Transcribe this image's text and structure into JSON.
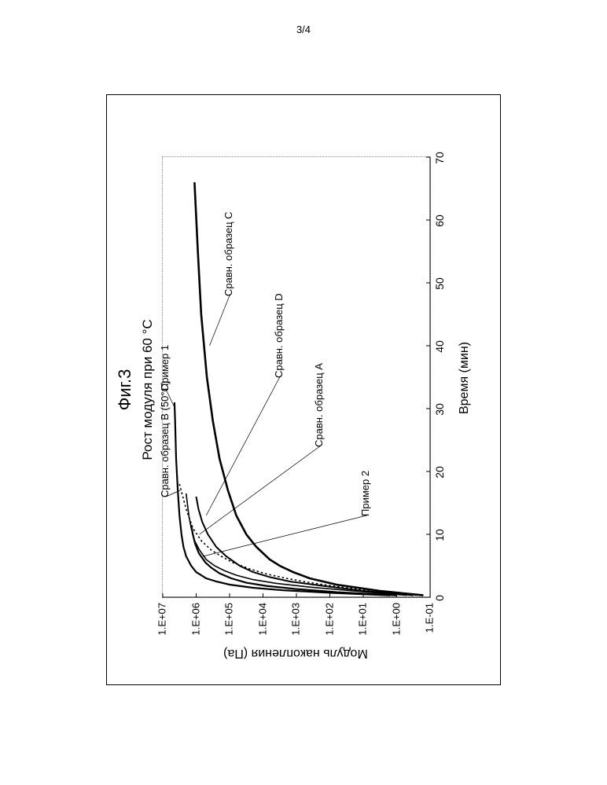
{
  "page_number": "3/4",
  "figure_label": "Фиг.3",
  "chart": {
    "type": "line",
    "title": "Рост модуля при 60 °C",
    "xlabel": "Время (мин)",
    "ylabel": "Модуль накопления (Па)",
    "xlim": [
      0,
      70
    ],
    "xtick_step": 10,
    "ylim_exp": [
      -1,
      7
    ],
    "yticks": [
      "1.E-01",
      "1.E+00",
      "1.E+01",
      "1.E+02",
      "1.E+03",
      "1.E+04",
      "1.E+05",
      "1.E+06",
      "1.E+07"
    ],
    "background_color": "#ffffff",
    "border_style": "dotted",
    "border_color": "#888888",
    "axis_font_size": 14,
    "label_font_size": 16,
    "title_font_size": 17,
    "series": [
      {
        "name": "Сравн. образец C",
        "stroke": "#000000",
        "width": 2.6,
        "dash": "",
        "data": [
          [
            0.3,
            -0.8
          ],
          [
            1,
            0.5
          ],
          [
            2,
            1.8
          ],
          [
            3,
            2.6
          ],
          [
            4,
            3.1
          ],
          [
            5,
            3.5
          ],
          [
            6,
            3.8
          ],
          [
            8,
            4.2
          ],
          [
            10,
            4.5
          ],
          [
            13,
            4.8
          ],
          [
            17,
            5.05
          ],
          [
            22,
            5.3
          ],
          [
            28,
            5.5
          ],
          [
            35,
            5.68
          ],
          [
            45,
            5.85
          ],
          [
            55,
            5.95
          ],
          [
            66,
            6.05
          ]
        ],
        "label_xy": [
          48,
          5.0
        ],
        "leader_to": [
          40,
          5.6
        ]
      },
      {
        "name": "Сравн. образец D",
        "stroke": "#000000",
        "width": 2.0,
        "dash": "",
        "data": [
          [
            0.3,
            -0.5
          ],
          [
            1,
            1.0
          ],
          [
            1.8,
            2.2
          ],
          [
            2.5,
            3.2
          ],
          [
            3.2,
            3.8
          ],
          [
            4,
            4.3
          ],
          [
            5,
            4.7
          ],
          [
            6.5,
            5.1
          ],
          [
            8,
            5.4
          ],
          [
            10,
            5.65
          ],
          [
            12,
            5.82
          ],
          [
            14,
            5.93
          ],
          [
            16,
            6.0
          ]
        ],
        "label_xy": [
          35,
          3.5
        ],
        "leader_to": [
          13,
          5.7
        ]
      },
      {
        "name": "Сравн. образец A",
        "stroke": "#000000",
        "width": 1.6,
        "dash": "",
        "data": [
          [
            0.3,
            -0.3
          ],
          [
            1,
            1.3
          ],
          [
            1.6,
            2.6
          ],
          [
            2.2,
            3.6
          ],
          [
            2.8,
            4.3
          ],
          [
            3.5,
            4.8
          ],
          [
            4.2,
            5.15
          ],
          [
            5,
            5.45
          ],
          [
            6,
            5.7
          ],
          [
            7.5,
            5.9
          ],
          [
            9,
            6.05
          ],
          [
            11,
            6.15
          ],
          [
            13,
            6.22
          ],
          [
            16.5,
            6.3
          ]
        ],
        "label_xy": [
          24,
          2.3
        ],
        "leader_to": [
          10,
          5.9
        ]
      },
      {
        "name": "Пример 2",
        "stroke": "#000000",
        "width": 2.2,
        "dash": "",
        "data": [
          [
            0.3,
            0.0
          ],
          [
            0.8,
            1.8
          ],
          [
            1.3,
            3.0
          ],
          [
            1.8,
            3.9
          ],
          [
            2.3,
            4.5
          ],
          [
            3,
            4.95
          ],
          [
            3.8,
            5.3
          ],
          [
            4.7,
            5.55
          ],
          [
            5.5,
            5.72
          ],
          [
            7,
            5.92
          ],
          [
            8.5,
            6.03
          ],
          [
            10,
            6.1
          ],
          [
            11.5,
            6.15
          ]
        ],
        "label_xy": [
          13,
          0.9
        ],
        "leader_to": [
          6.5,
          5.8
        ]
      },
      {
        "name": "Пример 1",
        "stroke": "#000000",
        "width": 2.2,
        "dash": "",
        "data": [
          [
            0.3,
            0.2
          ],
          [
            0.7,
            2.0
          ],
          [
            1.1,
            3.4
          ],
          [
            1.5,
            4.3
          ],
          [
            2,
            5.0
          ],
          [
            2.5,
            5.4
          ],
          [
            3,
            5.7
          ],
          [
            4,
            6.0
          ],
          [
            5,
            6.15
          ],
          [
            6.5,
            6.3
          ],
          [
            8,
            6.38
          ],
          [
            10,
            6.44
          ],
          [
            13,
            6.5
          ],
          [
            17,
            6.55
          ],
          [
            22,
            6.6
          ],
          [
            28,
            6.63
          ],
          [
            31,
            6.65
          ]
        ],
        "label_xy": [
          33,
          6.9
        ],
        "leader_to": [
          30,
          6.63
        ]
      },
      {
        "name": "Сравн. образец B (50°C)",
        "stroke": "#000000",
        "width": 1.6,
        "dash": "2.5 3",
        "data": [
          [
            0.3,
            -0.6
          ],
          [
            1,
            0.7
          ],
          [
            1.5,
            1.5
          ],
          [
            2,
            2.2
          ],
          [
            2.5,
            2.8
          ],
          [
            3,
            3.3
          ],
          [
            3.7,
            3.9
          ],
          [
            4.5,
            4.4
          ],
          [
            5.5,
            4.9
          ],
          [
            6.5,
            5.25
          ],
          [
            7.5,
            5.55
          ],
          [
            9,
            5.85
          ],
          [
            11,
            6.1
          ],
          [
            14,
            6.3
          ],
          [
            18,
            6.5
          ]
        ],
        "label_xy": [
          16,
          6.9
        ],
        "leader_to": [
          17,
          6.48
        ]
      }
    ]
  }
}
